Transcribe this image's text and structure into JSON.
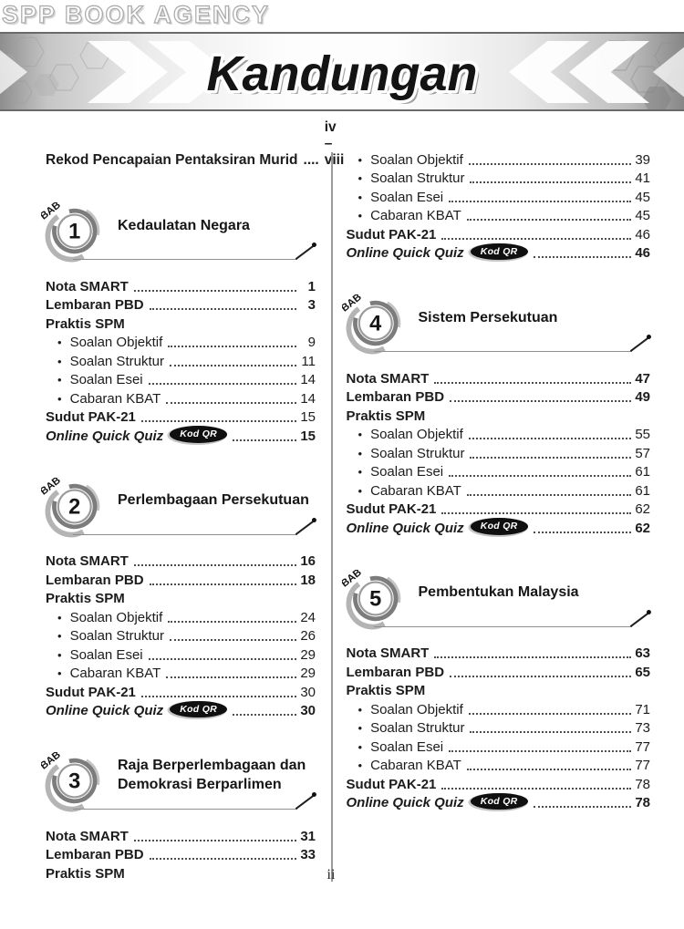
{
  "watermark": "SPP BOOK AGENCY",
  "header": {
    "title": "Kandungan"
  },
  "labels": {
    "bab": "BAB",
    "bullet": "•"
  },
  "intro": {
    "label": "Rekod Pencapaian Pentaksiran Murid",
    "dots": "....",
    "pages": "iv – viii"
  },
  "footer": {
    "page_number": "ii"
  },
  "colors": {
    "text": "#1c1c1c",
    "qr_badge_bg": "#101010",
    "banner_edge_gray": "#8e8e8e",
    "divider": "#9a9a9a"
  },
  "columns": {
    "left": [
      {
        "type": "chapter",
        "number": "1",
        "title": "Kedaulatan Negara",
        "rows": [
          {
            "style": "bold",
            "label": "Nota SMART",
            "page": "1",
            "pageBold": true
          },
          {
            "style": "bold",
            "label": "Lembaran PBD",
            "page": "3",
            "pageBold": true
          },
          {
            "style": "heading",
            "label": "Praktis SPM"
          },
          {
            "style": "sub",
            "label": "Soalan Objektif",
            "page": "9"
          },
          {
            "style": "sub",
            "label": "Soalan Struktur",
            "page": "11"
          },
          {
            "style": "sub",
            "label": "Soalan Esei",
            "page": "14"
          },
          {
            "style": "sub",
            "label": "Cabaran KBAT",
            "page": "14"
          },
          {
            "style": "bold",
            "label": "Sudut PAK-21",
            "page": "15",
            "pageBold": false
          },
          {
            "style": "quiz",
            "label": "Online Quick Quiz",
            "badge": "Kod QR",
            "page": "15",
            "pageBold": true
          }
        ]
      },
      {
        "type": "chapter",
        "number": "2",
        "title": "Perlembagaan Persekutuan",
        "rows": [
          {
            "style": "bold",
            "label": "Nota SMART",
            "page": "16",
            "pageBold": true
          },
          {
            "style": "bold",
            "label": "Lembaran PBD",
            "page": "18",
            "pageBold": true
          },
          {
            "style": "heading",
            "label": "Praktis SPM"
          },
          {
            "style": "sub",
            "label": "Soalan Objektif",
            "page": "24"
          },
          {
            "style": "sub",
            "label": "Soalan Struktur",
            "page": "26"
          },
          {
            "style": "sub",
            "label": "Soalan Esei",
            "page": "29"
          },
          {
            "style": "sub",
            "label": "Cabaran KBAT",
            "page": "29"
          },
          {
            "style": "bold",
            "label": "Sudut PAK-21",
            "page": "30",
            "pageBold": false
          },
          {
            "style": "quiz",
            "label": "Online Quick Quiz",
            "badge": "Kod QR",
            "page": "30",
            "pageBold": true
          }
        ]
      },
      {
        "type": "chapter",
        "number": "3",
        "title": "Raja Berperlembagaan dan Demokrasi Berparlimen",
        "rows": [
          {
            "style": "bold",
            "label": "Nota SMART",
            "page": "31",
            "pageBold": true
          },
          {
            "style": "bold",
            "label": "Lembaran PBD",
            "page": "33",
            "pageBold": true
          },
          {
            "style": "heading",
            "label": "Praktis SPM"
          }
        ]
      }
    ],
    "right": [
      {
        "type": "rows",
        "rows": [
          {
            "style": "sub",
            "label": "Soalan Objektif",
            "page": "39"
          },
          {
            "style": "sub",
            "label": "Soalan Struktur",
            "page": "41"
          },
          {
            "style": "sub",
            "label": "Soalan Esei",
            "page": "45"
          },
          {
            "style": "sub",
            "label": "Cabaran KBAT",
            "page": "45"
          },
          {
            "style": "bold",
            "label": "Sudut PAK-21",
            "page": "46",
            "pageBold": false
          },
          {
            "style": "quiz",
            "label": "Online Quick Quiz",
            "badge": "Kod QR",
            "page": "46",
            "pageBold": true
          }
        ]
      },
      {
        "type": "chapter",
        "number": "4",
        "title": "Sistem Persekutuan",
        "rows": [
          {
            "style": "bold",
            "label": "Nota SMART",
            "page": "47",
            "pageBold": true
          },
          {
            "style": "bold",
            "label": "Lembaran PBD",
            "page": "49",
            "pageBold": true
          },
          {
            "style": "heading",
            "label": "Praktis SPM"
          },
          {
            "style": "sub",
            "label": "Soalan Objektif",
            "page": "55"
          },
          {
            "style": "sub",
            "label": "Soalan Struktur",
            "page": "57"
          },
          {
            "style": "sub",
            "label": "Soalan Esei",
            "page": "61"
          },
          {
            "style": "sub",
            "label": "Cabaran KBAT",
            "page": "61"
          },
          {
            "style": "bold",
            "label": "Sudut PAK-21",
            "page": "62",
            "pageBold": false
          },
          {
            "style": "quiz",
            "label": "Online Quick Quiz",
            "badge": "Kod QR",
            "page": "62",
            "pageBold": true
          }
        ]
      },
      {
        "type": "chapter",
        "number": "5",
        "title": "Pembentukan Malaysia",
        "rows": [
          {
            "style": "bold",
            "label": "Nota SMART",
            "page": "63",
            "pageBold": true
          },
          {
            "style": "bold",
            "label": "Lembaran PBD",
            "page": "65",
            "pageBold": true
          },
          {
            "style": "heading",
            "label": "Praktis SPM"
          },
          {
            "style": "sub",
            "label": "Soalan Objektif",
            "page": "71"
          },
          {
            "style": "sub",
            "label": "Soalan Struktur",
            "page": "73"
          },
          {
            "style": "sub",
            "label": "Soalan Esei",
            "page": "77"
          },
          {
            "style": "sub",
            "label": "Cabaran KBAT",
            "page": "77"
          },
          {
            "style": "bold",
            "label": "Sudut PAK-21",
            "page": "78",
            "pageBold": false
          },
          {
            "style": "quiz",
            "label": "Online Quick Quiz",
            "badge": "Kod QR",
            "page": "78",
            "pageBold": true
          }
        ]
      }
    ]
  }
}
